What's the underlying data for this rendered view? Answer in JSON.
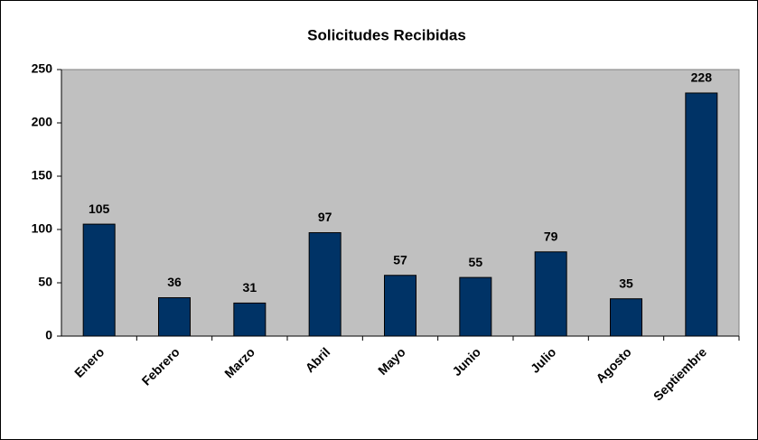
{
  "chart_data": {
    "type": "bar",
    "title": "Solicitudes Recibidas",
    "categories": [
      "Enero",
      "Febrero",
      "Marzo",
      "Abril",
      "Mayo",
      "Junio",
      "Julio",
      "Agosto",
      "Septiembre"
    ],
    "values": [
      105,
      36,
      31,
      97,
      57,
      55,
      79,
      35,
      228
    ],
    "color": "#003366",
    "ylim": [
      0,
      250
    ],
    "yticks": [
      0,
      50,
      100,
      150,
      200,
      250
    ],
    "grid": false
  }
}
